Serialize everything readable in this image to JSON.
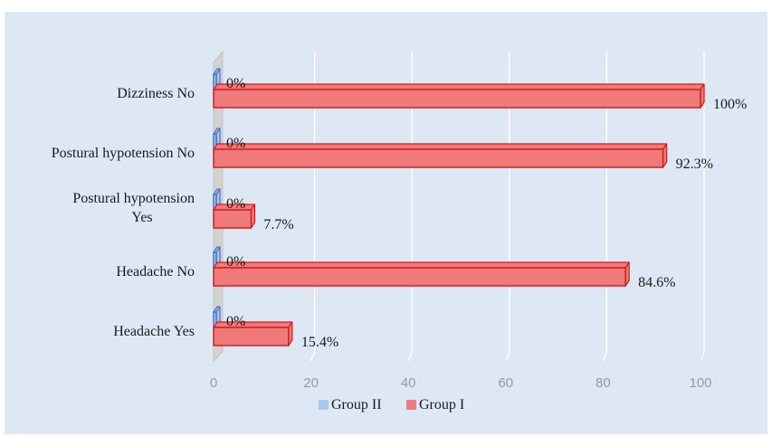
{
  "chart_data": {
    "type": "bar",
    "orientation": "horizontal",
    "style": "3d-clustered",
    "categories": [
      "Dizziness No",
      "Postural hypotension No",
      "Postural hypotension Yes",
      "Headache No",
      "Headache Yes"
    ],
    "category_lines": [
      [
        "Dizziness No"
      ],
      [
        "Postural hypotension No"
      ],
      [
        "Postural hypotension",
        "Yes"
      ],
      [
        "Headache No"
      ],
      [
        "Headache Yes"
      ]
    ],
    "series": [
      {
        "name": "Group II",
        "values": [
          0,
          0,
          0,
          0,
          0
        ],
        "labels": [
          "0%",
          "0%",
          "0%",
          "0%",
          "0%"
        ],
        "color": "#a9c8ee",
        "edge": "#4a72c4"
      },
      {
        "name": "Group I",
        "values": [
          100,
          92.3,
          7.7,
          84.6,
          15.4
        ],
        "labels": [
          "100%",
          "92.3%",
          "7.7%",
          "84.6%",
          "15.4%"
        ],
        "color": "#f07a7a",
        "edge": "#d41c1c"
      }
    ],
    "xlim": [
      0,
      100
    ],
    "xticks": [
      "0",
      "20",
      "40",
      "60",
      "80",
      "100"
    ],
    "grid": true,
    "legend": "bottom",
    "background": "#dde8f4"
  }
}
